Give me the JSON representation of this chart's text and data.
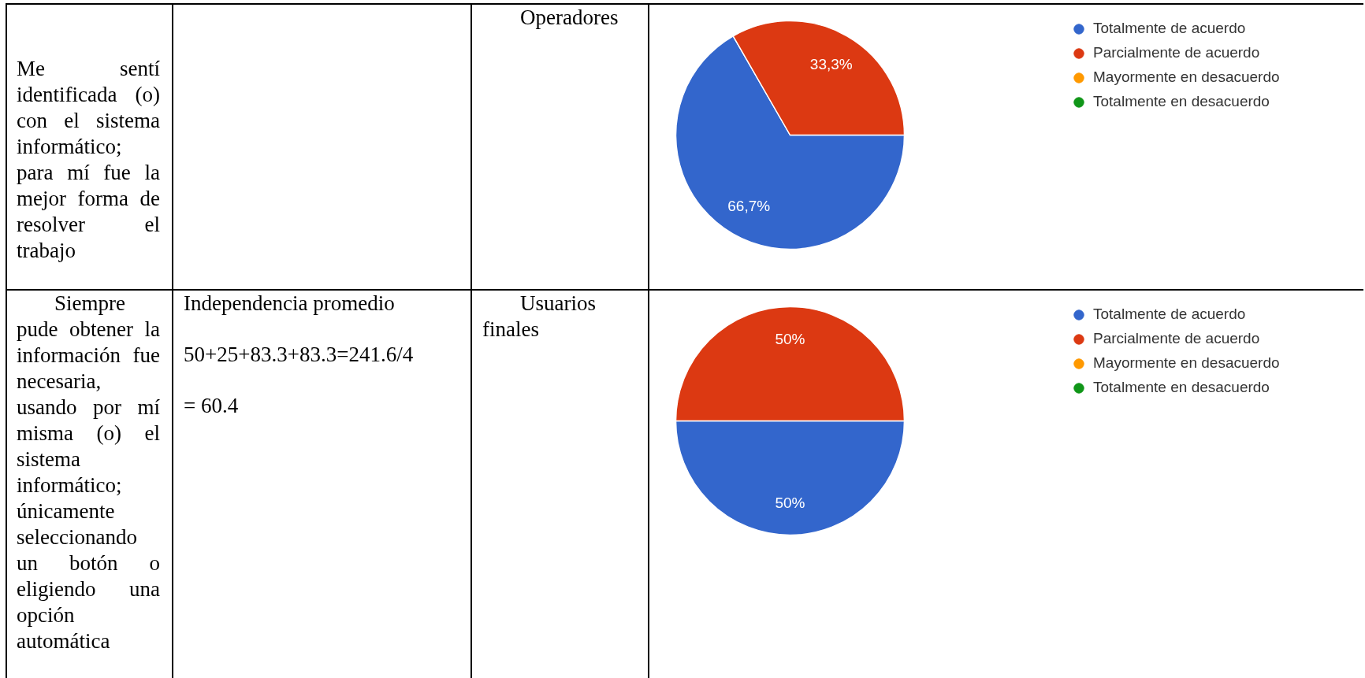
{
  "chart_data": [
    {
      "type": "pie",
      "categories": [
        "Totalmente de acuerdo",
        "Parcialmente de acuerdo",
        "Mayormente en desacuerdo",
        "Totalmente en desacuerdo"
      ],
      "values": [
        66.7,
        33.3,
        0,
        0
      ],
      "colors": [
        "#3366cc",
        "#dc3912",
        "#ff9900",
        "#109618"
      ],
      "value_labels": [
        "66,7%",
        "33,3%",
        null,
        null
      ],
      "legend": "right",
      "annotations": [
        "Me sentí identificada (o) con el sistema informático; para mí fue la mejor forma de resolver el trabajo",
        "Operadores"
      ]
    },
    {
      "type": "pie",
      "categories": [
        "Totalmente de acuerdo",
        "Parcialmente de acuerdo",
        "Mayormente en desacuerdo",
        "Totalmente en desacuerdo"
      ],
      "values": [
        50,
        50,
        0,
        0
      ],
      "colors": [
        "#3366cc",
        "#dc3912",
        "#ff9900",
        "#109618"
      ],
      "value_labels": [
        "50%",
        "50%",
        null,
        null
      ],
      "legend": "right",
      "annotations": [
        "Siempre pude obtener la información fue necesaria, usando por mí misma (o) el sistema informático; únicamente seleccionando un botón o eligiendo una opción automática",
        "Independencia promedio",
        "50+25+83.3+83.3=241.6/4",
        "= 60.4",
        "Usuarios finales"
      ]
    }
  ]
}
